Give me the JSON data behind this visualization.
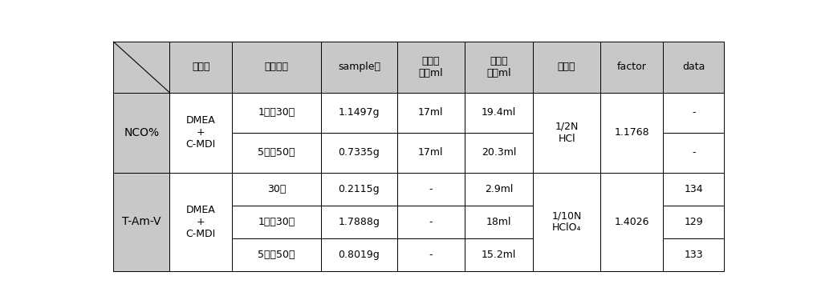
{
  "figsize": [
    10.18,
    3.65
  ],
  "dpi": 100,
  "header_bg": "#c8c8c8",
  "cell_bg": "#ffffff",
  "left_bg": "#c8c8c8",
  "border_color": "#000000",
  "font_size": 9,
  "columns": [
    "시료명",
    "반응시간",
    "sample량",
    "공시험\n소비ml",
    "본시험\n소비ml",
    "적정액",
    "factor",
    "data"
  ],
  "label_nco": "NCO%",
  "label_tamv": "T-Am-V",
  "nco_sample": "DMEA\n+\nC-MDI",
  "nco_titr": "1/2N\nHCl",
  "nco_factor": "1.1768",
  "nco_rows": [
    [
      "1시간30분",
      "1.1497g",
      "17ml",
      "19.4ml",
      "-"
    ],
    [
      "5시간50분",
      "0.7335g",
      "17ml",
      "20.3ml",
      "-"
    ]
  ],
  "tamv_sample": "DMEA\n+\nC-MDI",
  "tamv_titr": "1/10N\nHClO₄",
  "tamv_factor": "1.4026",
  "tamv_rows": [
    [
      "30분",
      "0.2115g",
      "-",
      "2.9ml",
      "134"
    ],
    [
      "1시간30분",
      "1.7888g",
      "-",
      "18ml",
      "129"
    ],
    [
      "5시간50분",
      "0.8019g",
      "-",
      "15.2ml",
      "133"
    ]
  ],
  "col_ratios": [
    0.085,
    0.095,
    0.135,
    0.115,
    0.103,
    0.103,
    0.103,
    0.095,
    0.092
  ]
}
